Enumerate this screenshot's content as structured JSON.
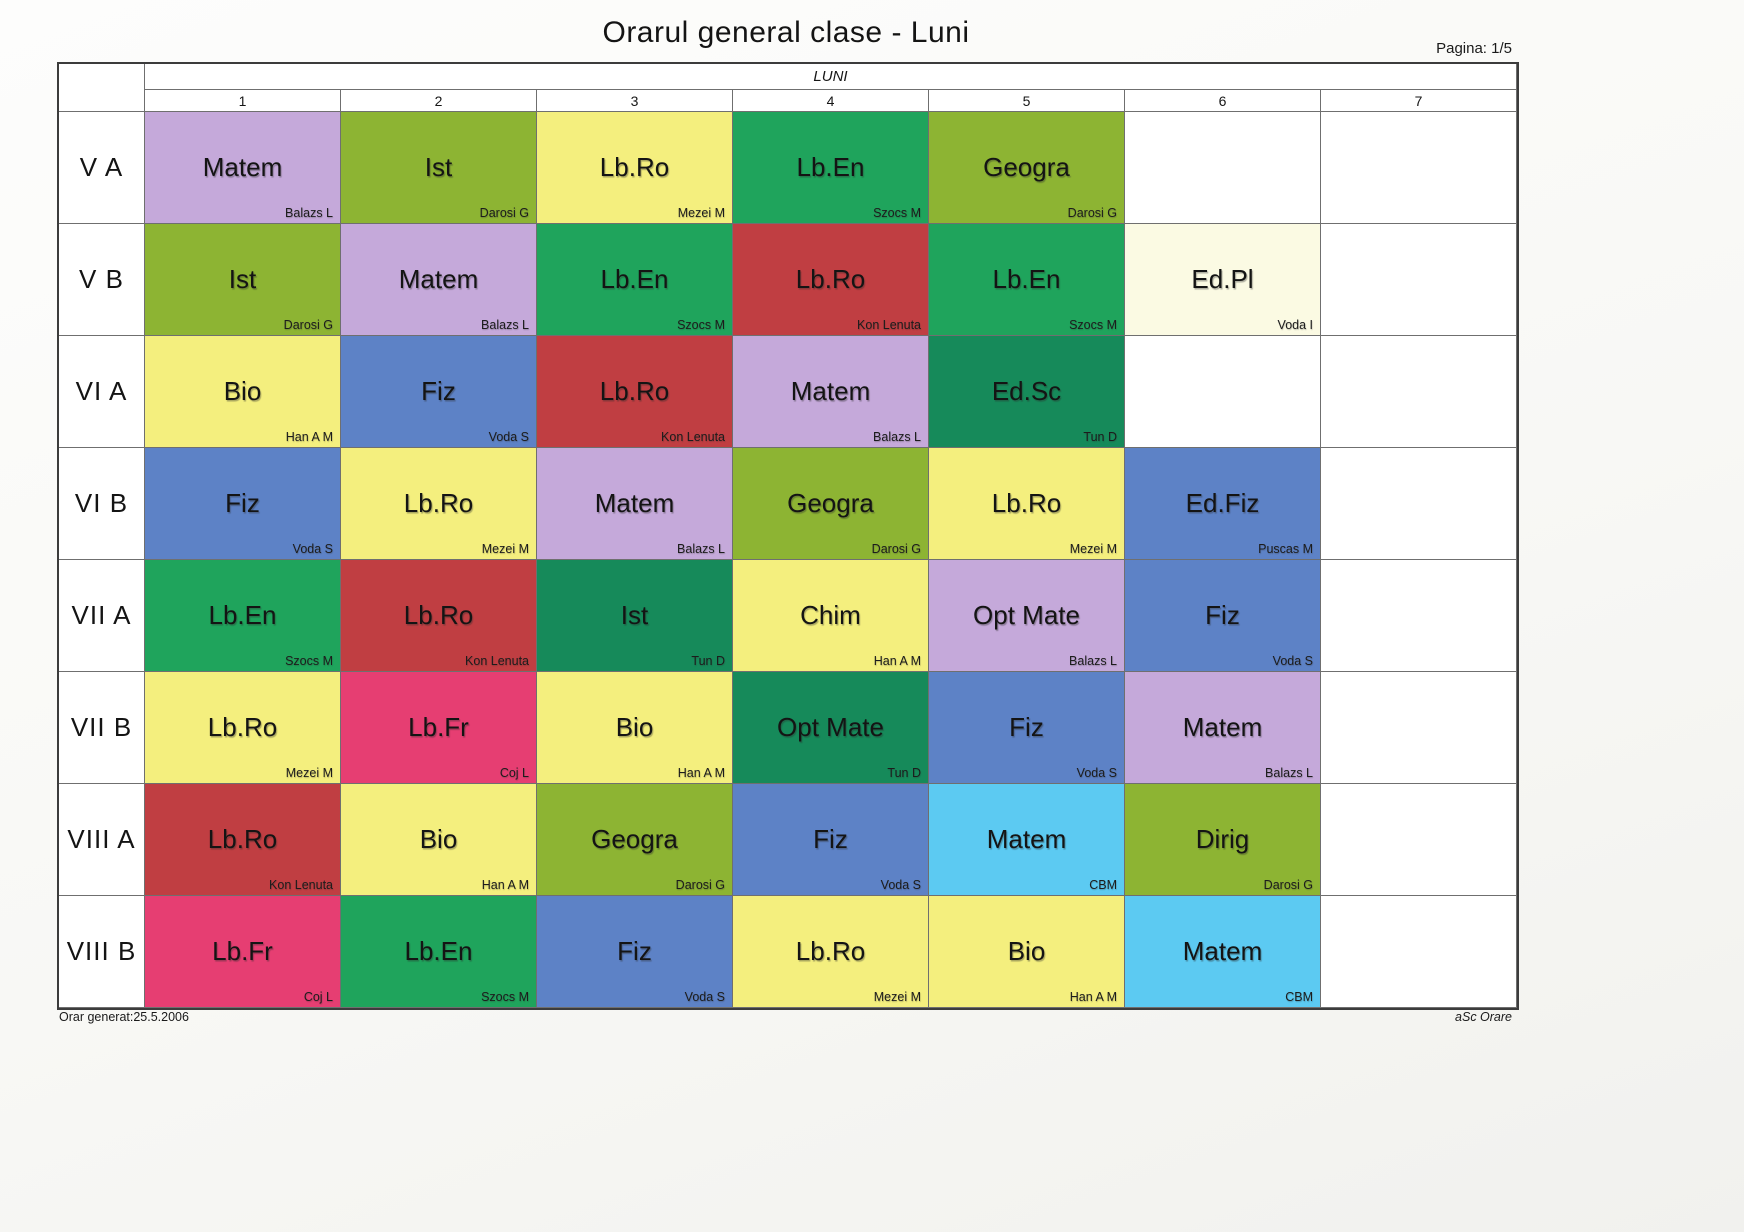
{
  "page": {
    "title": "Orarul general clase - Luni",
    "page_indicator": "Pagina: 1/5",
    "footer_left": "Orar generat:25.5.2006",
    "footer_right": "aSc Orare"
  },
  "palette": {
    "lavender": "#c5a9da",
    "olive": "#8db433",
    "yellow": "#f4ef7e",
    "green": "#1fa45c",
    "red": "#c03e42",
    "blue": "#5d82c6",
    "darkgreen": "#168a5a",
    "cream": "#fbfae3",
    "pink": "#e63e72",
    "cyan": "#5ccaf2"
  },
  "table": {
    "day_header": "LUNI",
    "period_headers": [
      "1",
      "2",
      "3",
      "4",
      "5",
      "6",
      "7"
    ],
    "rows": [
      {
        "class": "V A",
        "cells": [
          {
            "subject": "Matem",
            "teacher": "Balazs L",
            "color": "lavender"
          },
          {
            "subject": "Ist",
            "teacher": "Darosi G",
            "color": "olive"
          },
          {
            "subject": "Lb.Ro",
            "teacher": "Mezei M",
            "color": "yellow"
          },
          {
            "subject": "Lb.En",
            "teacher": "Szocs M",
            "color": "green"
          },
          {
            "subject": "Geogra",
            "teacher": "Darosi G",
            "color": "olive"
          },
          null,
          null
        ]
      },
      {
        "class": "V B",
        "cells": [
          {
            "subject": "Ist",
            "teacher": "Darosi G",
            "color": "olive"
          },
          {
            "subject": "Matem",
            "teacher": "Balazs L",
            "color": "lavender"
          },
          {
            "subject": "Lb.En",
            "teacher": "Szocs M",
            "color": "green"
          },
          {
            "subject": "Lb.Ro",
            "teacher": "Kon Lenuta",
            "color": "red"
          },
          {
            "subject": "Lb.En",
            "teacher": "Szocs M",
            "color": "green"
          },
          {
            "subject": "Ed.Pl",
            "teacher": "Voda I",
            "color": "cream"
          },
          null
        ]
      },
      {
        "class": "VI A",
        "cells": [
          {
            "subject": "Bio",
            "teacher": "Han A M",
            "color": "yellow"
          },
          {
            "subject": "Fiz",
            "teacher": "Voda S",
            "color": "blue"
          },
          {
            "subject": "Lb.Ro",
            "teacher": "Kon Lenuta",
            "color": "red"
          },
          {
            "subject": "Matem",
            "teacher": "Balazs L",
            "color": "lavender"
          },
          {
            "subject": "Ed.Sc",
            "teacher": "Tun D",
            "color": "darkgreen"
          },
          null,
          null
        ]
      },
      {
        "class": "VI B",
        "cells": [
          {
            "subject": "Fiz",
            "teacher": "Voda S",
            "color": "blue"
          },
          {
            "subject": "Lb.Ro",
            "teacher": "Mezei M",
            "color": "yellow"
          },
          {
            "subject": "Matem",
            "teacher": "Balazs L",
            "color": "lavender"
          },
          {
            "subject": "Geogra",
            "teacher": "Darosi G",
            "color": "olive"
          },
          {
            "subject": "Lb.Ro",
            "teacher": "Mezei M",
            "color": "yellow"
          },
          {
            "subject": "Ed.Fiz",
            "teacher": "Puscas M",
            "color": "blue"
          },
          null
        ]
      },
      {
        "class": "VII A",
        "cells": [
          {
            "subject": "Lb.En",
            "teacher": "Szocs M",
            "color": "green"
          },
          {
            "subject": "Lb.Ro",
            "teacher": "Kon Lenuta",
            "color": "red"
          },
          {
            "subject": "Ist",
            "teacher": "Tun D",
            "color": "darkgreen"
          },
          {
            "subject": "Chim",
            "teacher": "Han A M",
            "color": "yellow"
          },
          {
            "subject": "Opt Mate",
            "teacher": "Balazs L",
            "color": "lavender"
          },
          {
            "subject": "Fiz",
            "teacher": "Voda S",
            "color": "blue"
          },
          null
        ]
      },
      {
        "class": "VII B",
        "cells": [
          {
            "subject": "Lb.Ro",
            "teacher": "Mezei M",
            "color": "yellow"
          },
          {
            "subject": "Lb.Fr",
            "teacher": "Coj L",
            "color": "pink"
          },
          {
            "subject": "Bio",
            "teacher": "Han A M",
            "color": "yellow"
          },
          {
            "subject": "Opt Mate",
            "teacher": "Tun D",
            "color": "darkgreen"
          },
          {
            "subject": "Fiz",
            "teacher": "Voda S",
            "color": "blue"
          },
          {
            "subject": "Matem",
            "teacher": "Balazs L",
            "color": "lavender"
          },
          null
        ]
      },
      {
        "class": "VIII A",
        "cells": [
          {
            "subject": "Lb.Ro",
            "teacher": "Kon Lenuta",
            "color": "red"
          },
          {
            "subject": "Bio",
            "teacher": "Han A M",
            "color": "yellow"
          },
          {
            "subject": "Geogra",
            "teacher": "Darosi G",
            "color": "olive"
          },
          {
            "subject": "Fiz",
            "teacher": "Voda S",
            "color": "blue"
          },
          {
            "subject": "Matem",
            "teacher": "CBM",
            "color": "cyan"
          },
          {
            "subject": "Dirig",
            "teacher": "Darosi G",
            "color": "olive"
          },
          null
        ]
      },
      {
        "class": "VIII B",
        "cells": [
          {
            "subject": "Lb.Fr",
            "teacher": "Coj L",
            "color": "pink"
          },
          {
            "subject": "Lb.En",
            "teacher": "Szocs M",
            "color": "green"
          },
          {
            "subject": "Fiz",
            "teacher": "Voda S",
            "color": "blue"
          },
          {
            "subject": "Lb.Ro",
            "teacher": "Mezei M",
            "color": "yellow"
          },
          {
            "subject": "Bio",
            "teacher": "Han A M",
            "color": "yellow"
          },
          {
            "subject": "Matem",
            "teacher": "CBM",
            "color": "cyan"
          },
          null
        ]
      }
    ]
  }
}
